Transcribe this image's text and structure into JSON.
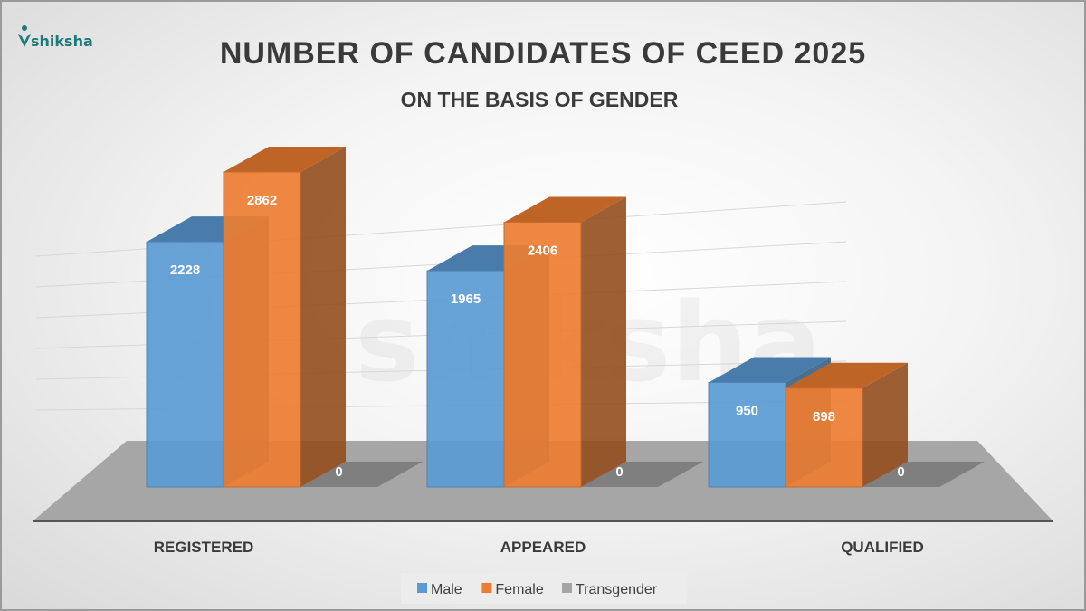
{
  "logo": {
    "text": "shiksha",
    "watermark": "shiksha"
  },
  "chart_data": {
    "type": "bar",
    "title": "NUMBER OF CANDIDATES OF CEED 2025",
    "subtitle": "ON THE BASIS OF GENDER",
    "categories": [
      "REGISTERED",
      "APPEARED",
      "QUALIFIED"
    ],
    "series": [
      {
        "name": "Male",
        "values": [
          2228,
          1965,
          950
        ],
        "color": "#5b9bd5"
      },
      {
        "name": "Female",
        "values": [
          2862,
          2406,
          898
        ],
        "color": "#ed7d31"
      },
      {
        "name": "Transgender",
        "values": [
          0,
          0,
          0
        ],
        "color": "#a5a5a5"
      }
    ],
    "ylim": [
      0,
      3000
    ],
    "grid": true,
    "legend": "bottom",
    "style": "3d-clustered-column"
  }
}
